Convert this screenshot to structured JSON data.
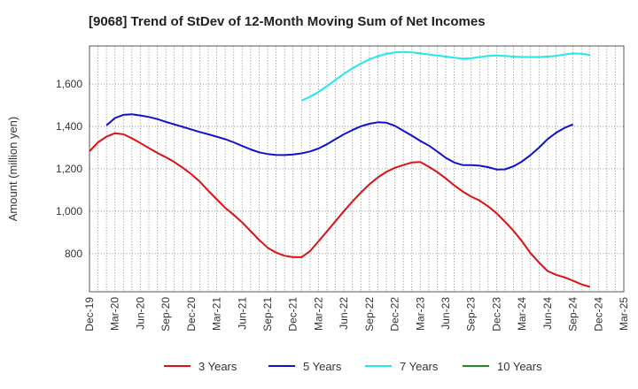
{
  "chart_data": {
    "type": "line",
    "title": "[9068]  Trend of StDev of 12-Month Moving Sum of Net Incomes",
    "ylabel": "Amount (million yen)",
    "xlabel": "",
    "ylim": [
      620,
      1780
    ],
    "yticks": [
      800,
      1000,
      1200,
      1400,
      1600
    ],
    "ytick_labels": [
      "800",
      "1,000",
      "1,200",
      "1,400",
      "1,600"
    ],
    "xtick_labels": [
      "Dec-19",
      "Mar-20",
      "Jun-20",
      "Sep-20",
      "Dec-20",
      "Mar-21",
      "Jun-21",
      "Sep-21",
      "Dec-21",
      "Mar-22",
      "Jun-22",
      "Sep-22",
      "Dec-22",
      "Mar-23",
      "Jun-23",
      "Sep-23",
      "Dec-23",
      "Mar-24",
      "Jun-24",
      "Sep-24",
      "Dec-24",
      "Mar-25"
    ],
    "grid": true,
    "legend_position": "bottom",
    "series": [
      {
        "name": "3 Years",
        "color": "#dd1111",
        "x": [
          0,
          1,
          2,
          3,
          4,
          5,
          6,
          7,
          8,
          9,
          10,
          11,
          12,
          13,
          14,
          15,
          16,
          17,
          18,
          19,
          20,
          21,
          22,
          23,
          24,
          25,
          26,
          27,
          28,
          29,
          30,
          31,
          32,
          33,
          34,
          35,
          36,
          37,
          38,
          39,
          40,
          41,
          42,
          43,
          44,
          45,
          46,
          47,
          48,
          49,
          50,
          51,
          52,
          53,
          54,
          55,
          56,
          57,
          58,
          59,
          60
        ],
        "values": [
          1283,
          1325,
          1352,
          1368,
          1363,
          1344,
          1322,
          1298,
          1275,
          1255,
          1232,
          1205,
          1175,
          1140,
          1097,
          1056,
          1016,
          983,
          947,
          906,
          865,
          828,
          805,
          790,
          783,
          783,
          812,
          858,
          905,
          953,
          1000,
          1046,
          1088,
          1127,
          1160,
          1186,
          1205,
          1218,
          1230,
          1232,
          1210,
          1185,
          1155,
          1122,
          1093,
          1069,
          1050,
          1023,
          990,
          950,
          907,
          858,
          802,
          758,
          718,
          700,
          688,
          672,
          655,
          643,
          null
        ]
      },
      {
        "name": "5 Years",
        "color": "#1111cc",
        "x": [
          0,
          1,
          2,
          3,
          4,
          5,
          6,
          7,
          8,
          9,
          10,
          11,
          12,
          13,
          14,
          15,
          16,
          17,
          18,
          19,
          20,
          21,
          22,
          23,
          24,
          25,
          26,
          27,
          28,
          29,
          30,
          31,
          32,
          33,
          34,
          35,
          36,
          37,
          38,
          39,
          40,
          41,
          42,
          43,
          44,
          45,
          46,
          47,
          48,
          49,
          50,
          51,
          52,
          53,
          54,
          55,
          56,
          57,
          58,
          59,
          60
        ],
        "values": [
          null,
          null,
          1405,
          1440,
          1455,
          1458,
          1452,
          1445,
          1435,
          1422,
          1410,
          1398,
          1386,
          1374,
          1363,
          1352,
          1340,
          1325,
          1308,
          1292,
          1278,
          1270,
          1266,
          1265,
          1268,
          1273,
          1282,
          1296,
          1316,
          1340,
          1363,
          1383,
          1401,
          1413,
          1420,
          1418,
          1403,
          1380,
          1357,
          1332,
          1310,
          1282,
          1252,
          1230,
          1218,
          1218,
          1215,
          1208,
          1197,
          1198,
          1212,
          1235,
          1265,
          1300,
          1340,
          1370,
          1393,
          1410,
          null,
          null,
          null
        ]
      },
      {
        "name": "7 Years",
        "color": "#22e8e8",
        "x": [
          0,
          1,
          2,
          3,
          4,
          5,
          6,
          7,
          8,
          9,
          10,
          11,
          12,
          13,
          14,
          15,
          16,
          17,
          18,
          19,
          20,
          21,
          22,
          23,
          24,
          25,
          26,
          27,
          28,
          29,
          30,
          31,
          32,
          33,
          34,
          35,
          36,
          37,
          38,
          39,
          40,
          41,
          42,
          43,
          44,
          45,
          46,
          47,
          48,
          49,
          50,
          51,
          52,
          53,
          54,
          55,
          56,
          57,
          58,
          59,
          60
        ],
        "values": [
          null,
          null,
          null,
          null,
          null,
          null,
          null,
          null,
          null,
          null,
          null,
          null,
          null,
          null,
          null,
          null,
          null,
          null,
          null,
          null,
          null,
          null,
          null,
          null,
          null,
          1522,
          1540,
          1563,
          1590,
          1620,
          1648,
          1675,
          1697,
          1717,
          1732,
          1743,
          1750,
          1752,
          1750,
          1745,
          1740,
          1735,
          1730,
          1725,
          1720,
          1722,
          1728,
          1733,
          1735,
          1733,
          1730,
          1728,
          1728,
          1728,
          1730,
          1733,
          1740,
          1745,
          1743,
          1738,
          null
        ]
      },
      {
        "name": "10 Years",
        "color": "#228822",
        "x": [],
        "values": []
      }
    ]
  }
}
